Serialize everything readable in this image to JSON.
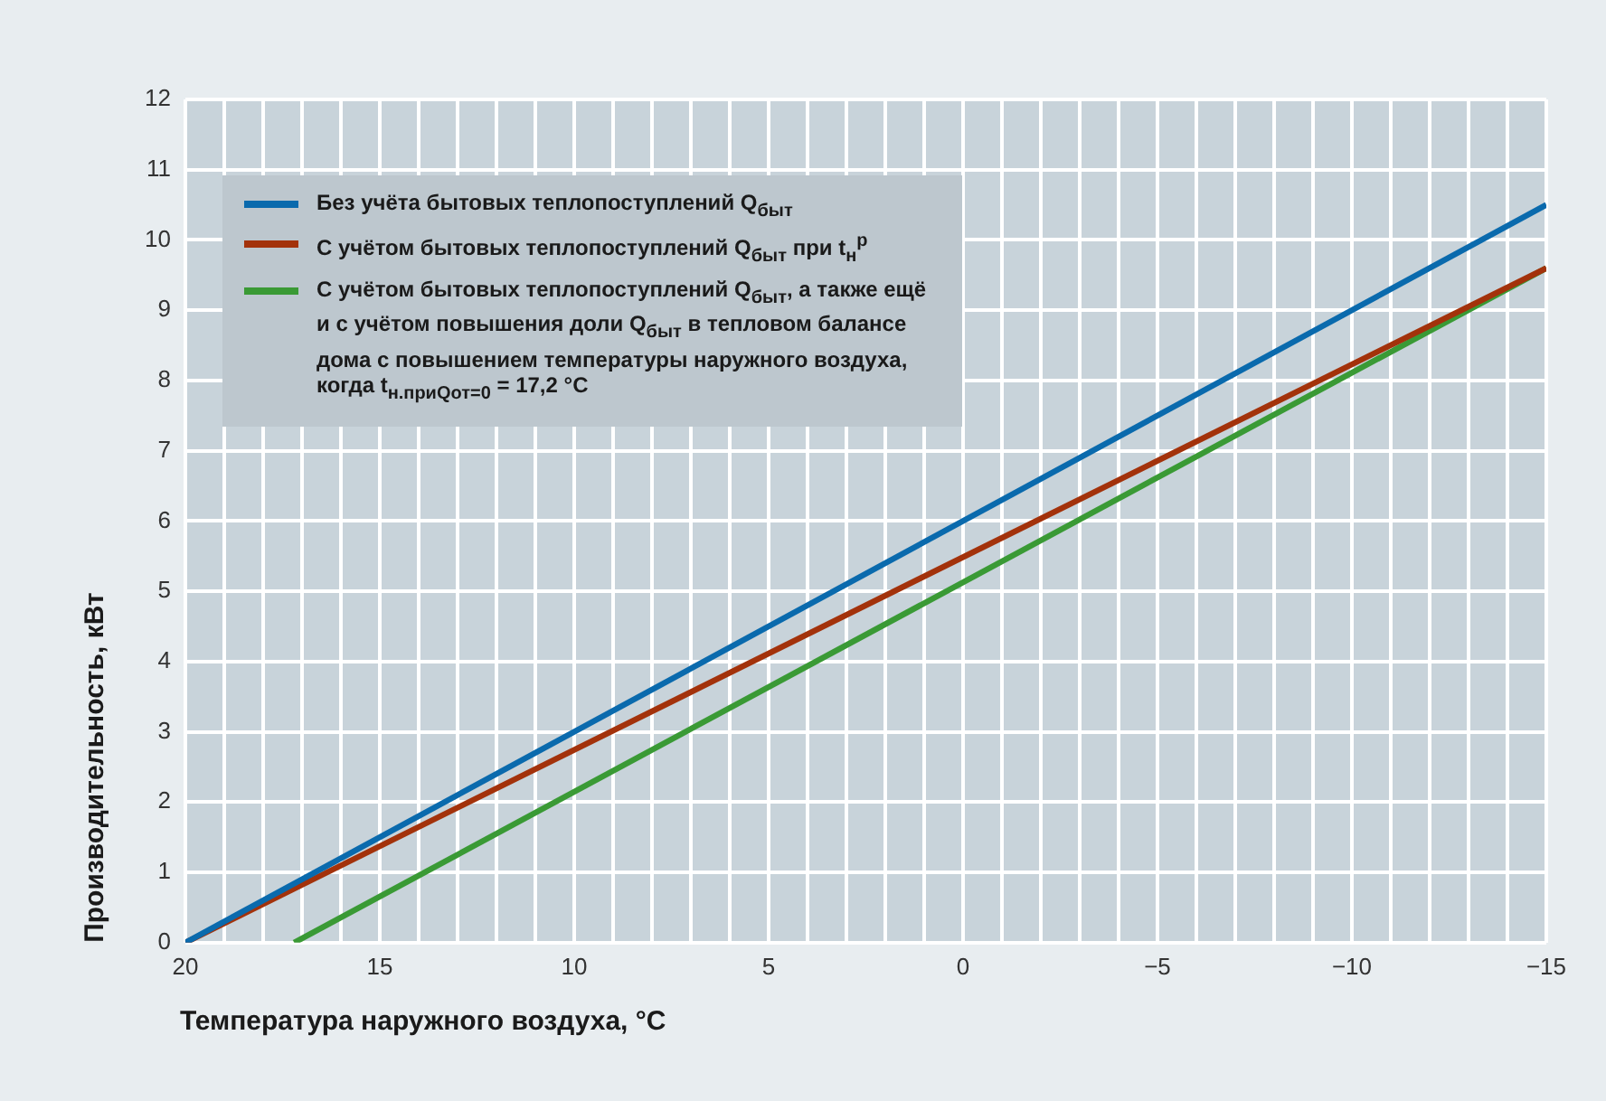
{
  "chart_data": {
    "type": "line",
    "xlabel": "Температура наружного воздуха, °C",
    "ylabel": "Производительность, кВт",
    "xlim": [
      20,
      -15
    ],
    "xticks": [
      20,
      {
        "value": 19,
        "label": null
      },
      {
        "value": 18,
        "label": null
      },
      {
        "value": 17,
        "label": null
      },
      {
        "value": 16,
        "label": null
      },
      15,
      {
        "value": 14,
        "label": null
      },
      {
        "value": 13,
        "label": null
      },
      {
        "value": 12,
        "label": null
      },
      {
        "value": 11,
        "label": null
      },
      10,
      {
        "value": 9,
        "label": null
      },
      {
        "value": 8,
        "label": null
      },
      {
        "value": 7,
        "label": null
      },
      {
        "value": 6,
        "label": null
      },
      5,
      {
        "value": 4,
        "label": null
      },
      {
        "value": 3,
        "label": null
      },
      {
        "value": 2,
        "label": null
      },
      {
        "value": 1,
        "label": null
      },
      0,
      {
        "value": -1,
        "label": null
      },
      {
        "value": -2,
        "label": null
      },
      {
        "value": -3,
        "label": null
      },
      {
        "value": -4,
        "label": null
      },
      {
        "value": -5,
        "label": "−5"
      },
      {
        "value": -6,
        "label": null
      },
      {
        "value": -7,
        "label": null
      },
      {
        "value": -8,
        "label": null
      },
      {
        "value": -9,
        "label": null
      },
      {
        "value": -10,
        "label": "−10"
      },
      {
        "value": -11,
        "label": null
      },
      {
        "value": -12,
        "label": null
      },
      {
        "value": -13,
        "label": null
      },
      {
        "value": -14,
        "label": null
      },
      {
        "value": -15,
        "label": "−15"
      }
    ],
    "ylim": [
      0,
      12
    ],
    "yticks": [
      0,
      1,
      2,
      3,
      4,
      5,
      6,
      7,
      8,
      9,
      10,
      11,
      12
    ],
    "grid": true,
    "legend": "top left",
    "marker": "none",
    "line_style": "solid",
    "series": [
      {
        "name": "Без учёта бытовых теплопоступлений Q$_{быт}$",
        "color": "#0a6aad",
        "x": [
          20,
          -15
        ],
        "values": [
          0,
          10.5
        ]
      },
      {
        "name": "С учётом бытовых теплопоступлений Q$_{быт}$ при t$_{н}$$^{р}$",
        "color": "#a3320b",
        "x": [
          20,
          -15
        ],
        "values": [
          0,
          9.6
        ]
      },
      {
        "name": "С учётом бытовых теплопоступлений Q$_{быт}$, а также ещё и с учётом повышения доли Q$_{быт}$ в тепловом балансе дома с повышением температуры наружного воздуха, когда t$_{н.приQот=0}$ = 17,2 °C",
        "color": "#3a9a35",
        "x": [
          17.2,
          -15
        ],
        "values": [
          0,
          9.6
        ]
      }
    ]
  }
}
